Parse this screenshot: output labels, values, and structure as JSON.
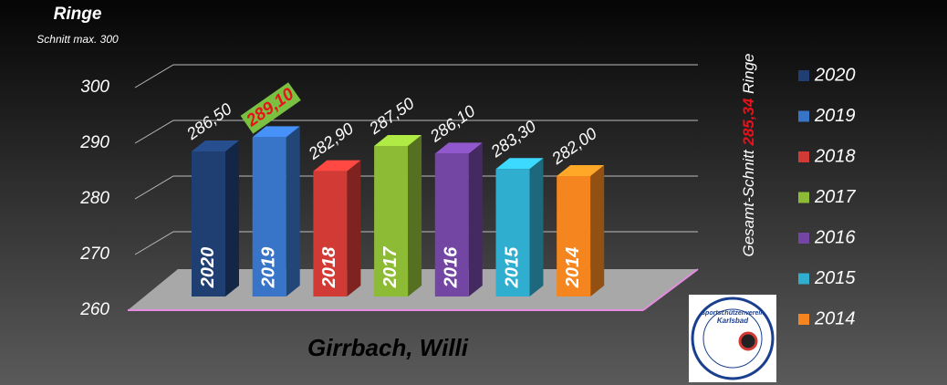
{
  "chart_data": {
    "type": "bar3d",
    "y_label": "Ringe",
    "y_sublabel": "Schnitt max. 300",
    "annotation_parts": [
      "Gesamt-Schnitt ",
      "285,34",
      " Ringe"
    ],
    "annotation_highlight_color": "#e8121b",
    "footer": "Girrbach, Willi",
    "logo_texts": [
      "Sportschützenverein",
      "Karlsbad"
    ],
    "categories": [
      "2020",
      "2019",
      "2018",
      "2017",
      "2016",
      "2015",
      "2014"
    ],
    "values": [
      286.5,
      289.1,
      282.9,
      287.5,
      286.1,
      283.3,
      282.0
    ],
    "value_labels": [
      "286,50",
      "289,10",
      "282,90",
      "287,50",
      "286,10",
      "283,30",
      "282,00"
    ],
    "colors": [
      "#1f3f73",
      "#3874c8",
      "#d23a35",
      "#8dbb36",
      "#7346a3",
      "#30aecf",
      "#f5861f"
    ],
    "max_label_bg": "#7ac142",
    "max_label_color": "#e8121b",
    "ylim": [
      260,
      310
    ],
    "yticks": [
      260,
      270,
      280,
      290,
      300
    ],
    "grid": true
  }
}
